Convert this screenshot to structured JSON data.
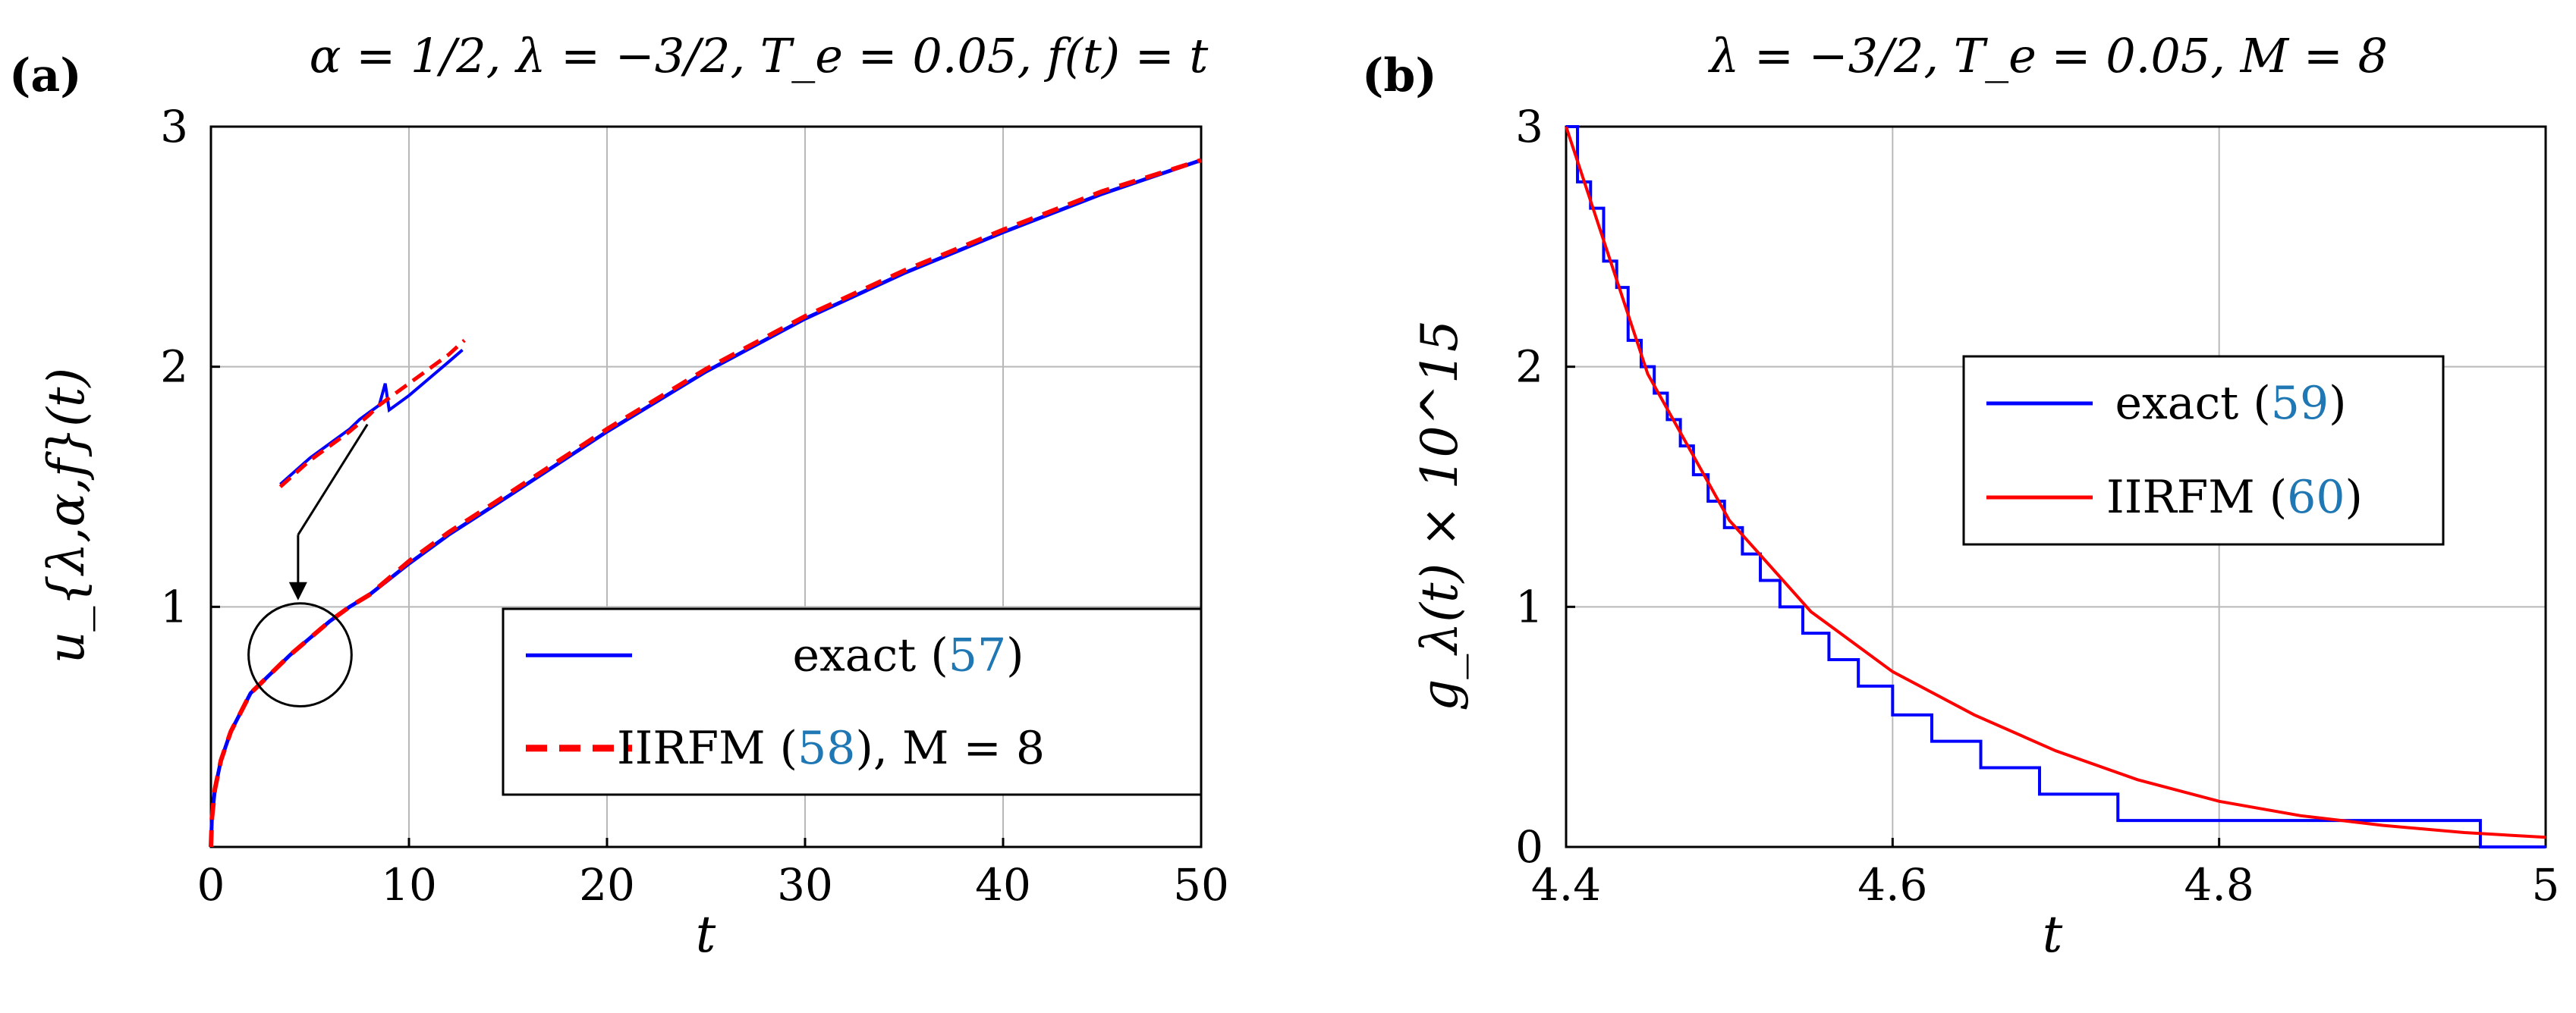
{
  "chart_data": [
    {
      "id": "a",
      "panel_label": "(a)",
      "title": "α = 1/2, λ = −3/2, T_e = 0.05, f(t) = t",
      "type": "line",
      "xlabel": "t",
      "ylabel": "u_{λ,α,f}(t)",
      "xlim": [
        0,
        50
      ],
      "ylim": [
        0,
        3
      ],
      "xticks": [
        0,
        10,
        20,
        30,
        40,
        50
      ],
      "yticks": [
        1,
        2,
        3
      ],
      "grid": true,
      "legend_position": "bottom-right",
      "series": [
        {
          "name": "exact",
          "ref": "57",
          "color": "#0000ff",
          "style": "solid",
          "x": [
            0,
            0.05,
            0.2,
            0.5,
            1,
            2,
            3,
            4,
            5,
            6,
            7,
            8,
            10,
            12,
            15,
            20,
            25,
            30,
            35,
            40,
            45,
            50
          ],
          "y": [
            0,
            0.12,
            0.24,
            0.36,
            0.48,
            0.64,
            0.72,
            0.8,
            0.87,
            0.94,
            1.0,
            1.05,
            1.18,
            1.3,
            1.46,
            1.73,
            1.98,
            2.2,
            2.39,
            2.56,
            2.72,
            2.86
          ]
        },
        {
          "name": "IIRFM",
          "ref": "58",
          "extra": ", M = 8",
          "color": "#ff0000",
          "style": "dashed",
          "x": [
            0,
            0.05,
            0.2,
            0.5,
            1,
            2,
            3,
            4,
            5,
            6,
            7,
            8,
            10,
            12,
            15,
            20,
            25,
            30,
            35,
            40,
            45,
            50
          ],
          "y": [
            0,
            0.12,
            0.24,
            0.36,
            0.48,
            0.64,
            0.72,
            0.8,
            0.87,
            0.94,
            1.0,
            1.05,
            1.19,
            1.31,
            1.47,
            1.74,
            1.99,
            2.21,
            2.4,
            2.57,
            2.73,
            2.86
          ]
        }
      ],
      "inset": {
        "description": "magnified view near t ≈ 4",
        "exact": [
          [
            3.5,
            1.51
          ],
          [
            5.0,
            1.62
          ],
          [
            6.0,
            1.68
          ],
          [
            7.0,
            1.74
          ],
          [
            7.5,
            1.78
          ],
          [
            8.0,
            1.81
          ],
          [
            8.5,
            1.84
          ],
          [
            8.8,
            1.93
          ],
          [
            9.0,
            1.82
          ],
          [
            10.0,
            1.88
          ],
          [
            11.0,
            1.95
          ],
          [
            12.0,
            2.02
          ],
          [
            12.7,
            2.07
          ]
        ],
        "iirfm": [
          [
            3.5,
            1.5
          ],
          [
            5.0,
            1.61
          ],
          [
            6.0,
            1.67
          ],
          [
            7.0,
            1.73
          ],
          [
            8.0,
            1.8
          ],
          [
            8.5,
            1.84
          ],
          [
            9.0,
            1.87
          ],
          [
            10.0,
            1.93
          ],
          [
            11.0,
            1.99
          ],
          [
            12.0,
            2.05
          ],
          [
            12.8,
            2.11
          ]
        ],
        "circle_center": [
          4.5,
          0.8
        ],
        "circle_radius_t": 2.6
      }
    },
    {
      "id": "b",
      "panel_label": "(b)",
      "title": "λ = −3/2, T_e = 0.05, M = 8",
      "type": "line",
      "xlabel": "t",
      "ylabel": "g_λ(t) × 10^15",
      "xlim": [
        4.4,
        5
      ],
      "ylim": [
        0,
        3
      ],
      "xticks": [
        4.4,
        4.6,
        4.8,
        5
      ],
      "yticks": [
        0,
        1,
        2,
        3
      ],
      "grid": true,
      "legend_position": "center-right",
      "series": [
        {
          "name": "exact",
          "ref": "59",
          "color": "#0000ff",
          "style": "staircase",
          "values_note": "step function: held at each level until the next jump",
          "x": [
            4.4,
            4.41,
            4.42,
            4.43,
            4.44,
            4.45,
            4.46,
            4.47,
            4.48,
            4.49,
            4.5,
            4.51,
            4.52,
            4.53,
            4.54,
            4.555,
            4.57,
            4.585,
            4.6,
            4.62,
            4.64,
            4.66,
            4.69,
            4.715,
            4.74,
            4.77,
            4.81,
            4.86,
            4.96
          ],
          "y": [
            3.0,
            2.77,
            2.55,
            2.33,
            2.11,
            2.0,
            1.89,
            1.78,
            1.67,
            1.55,
            1.44,
            1.33,
            1.22,
            1.11,
            1.0,
            0.89,
            0.78,
            0.67,
            0.55,
            0.44,
            0.33,
            0.22,
            0.11,
            0.11,
            0.0,
            0.0,
            0.0,
            0.0,
            0.0
          ],
          "steps": [
            [
              4.4,
              3.0
            ],
            [
              4.407,
              2.77
            ],
            [
              4.415,
              2.66
            ],
            [
              4.423,
              2.44
            ],
            [
              4.431,
              2.33
            ],
            [
              4.438,
              2.11
            ],
            [
              4.446,
              2.0
            ],
            [
              4.454,
              1.89
            ],
            [
              4.462,
              1.78
            ],
            [
              4.47,
              1.67
            ],
            [
              4.478,
              1.55
            ],
            [
              4.487,
              1.44
            ],
            [
              4.497,
              1.33
            ],
            [
              4.508,
              1.22
            ],
            [
              4.519,
              1.11
            ],
            [
              4.531,
              1.0
            ],
            [
              4.545,
              0.89
            ],
            [
              4.561,
              0.78
            ],
            [
              4.579,
              0.67
            ],
            [
              4.6,
              0.55
            ],
            [
              4.624,
              0.44
            ],
            [
              4.654,
              0.33
            ],
            [
              4.69,
              0.22
            ],
            [
              4.738,
              0.11
            ],
            [
              4.808,
              0.11
            ],
            [
              4.96,
              0.0
            ]
          ]
        },
        {
          "name": "IIRFM",
          "ref": "60",
          "color": "#ff0000",
          "style": "solid",
          "x": [
            4.4,
            4.45,
            4.5,
            4.55,
            4.6,
            4.65,
            4.7,
            4.75,
            4.8,
            4.85,
            4.9,
            4.95,
            5.0
          ],
          "y": [
            3.0,
            1.97,
            1.36,
            0.98,
            0.73,
            0.55,
            0.4,
            0.28,
            0.19,
            0.13,
            0.09,
            0.06,
            0.04
          ]
        }
      ]
    }
  ]
}
